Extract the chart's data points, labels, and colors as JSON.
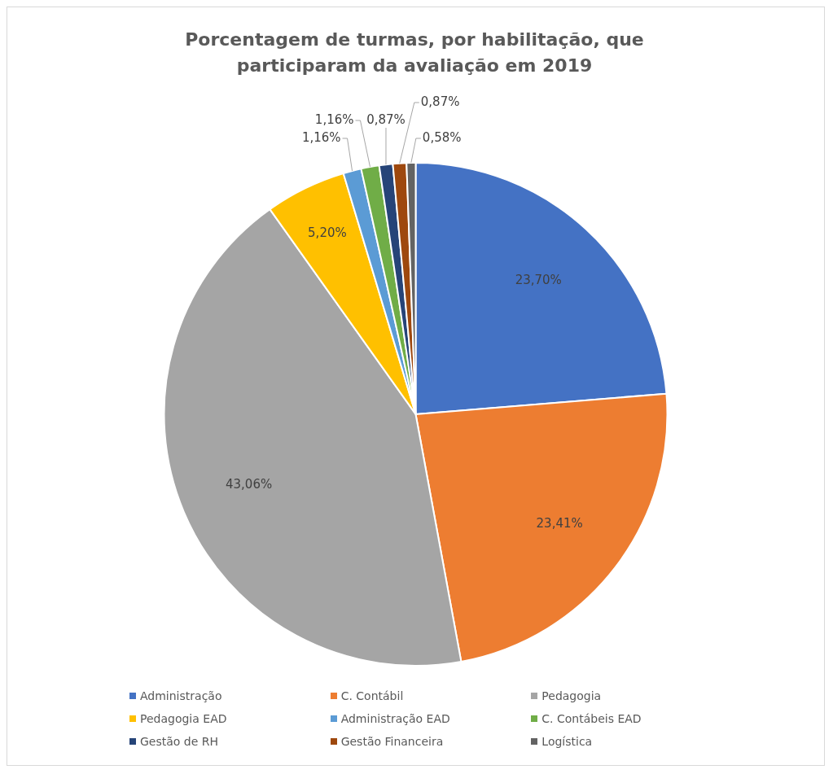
{
  "chart_data": {
    "type": "pie",
    "title": "Porcentagem de turmas, por habilitação, que participaram da avaliação em 2019",
    "categories": [
      "Administração",
      "C. Contábil",
      "Pedagogia",
      "Pedagogia EAD",
      "Administração EAD",
      "C. Contábeis EAD",
      "Gestão de RH",
      "Gestão Financeira",
      "Logística"
    ],
    "values": [
      23.7,
      23.41,
      43.06,
      5.2,
      1.16,
      1.16,
      0.87,
      0.87,
      0.58
    ],
    "colors": [
      "#4472c4",
      "#ed7d31",
      "#a5a5a5",
      "#ffc000",
      "#5b9bd5",
      "#70ad47",
      "#264478",
      "#9e480e",
      "#636363"
    ],
    "value_labels": [
      "23,70%",
      "23,41%",
      "43,06%",
      "5,20%",
      "1,16%",
      "1,16%",
      "0,87%",
      "0,87%",
      "0,58%"
    ],
    "legend": "bottom"
  }
}
